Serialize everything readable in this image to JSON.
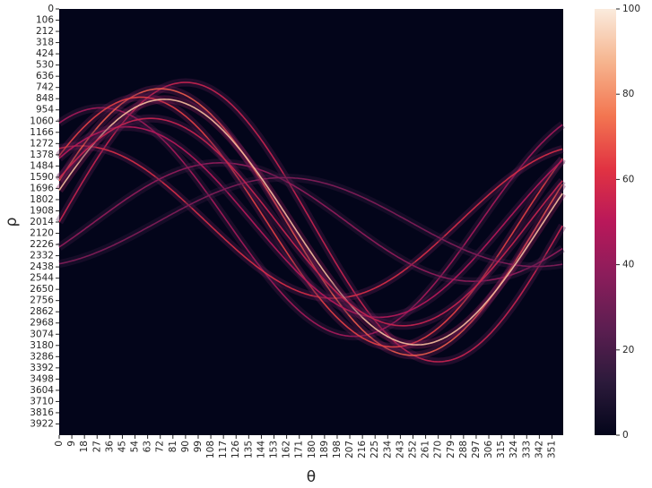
{
  "chart_data": {
    "type": "heatmap",
    "title": "",
    "xlabel": "θ",
    "ylabel": "ρ",
    "x_tick_labels": [
      "0",
      "9",
      "18",
      "27",
      "36",
      "45",
      "54",
      "63",
      "72",
      "81",
      "90",
      "99",
      "108",
      "117",
      "126",
      "135",
      "144",
      "153",
      "162",
      "171",
      "180",
      "189",
      "198",
      "207",
      "216",
      "225",
      "234",
      "243",
      "252",
      "261",
      "270",
      "279",
      "288",
      "297",
      "306",
      "315",
      "324",
      "333",
      "342",
      "351"
    ],
    "y_tick_labels": [
      "0",
      "106",
      "212",
      "318",
      "424",
      "530",
      "636",
      "742",
      "848",
      "954",
      "1060",
      "1166",
      "1272",
      "1378",
      "1484",
      "1590",
      "1696",
      "1802",
      "1908",
      "2014",
      "2120",
      "2226",
      "2332",
      "2438",
      "2544",
      "2650",
      "2756",
      "2862",
      "2968",
      "3074",
      "3180",
      "3286",
      "3392",
      "3498",
      "3604",
      "3710",
      "3816",
      "3922"
    ],
    "xlim": [
      0,
      359
    ],
    "ylim": [
      0,
      4028
    ],
    "colorbar": {
      "min": 0,
      "max": 100,
      "ticks": [
        "0",
        "20",
        "40",
        "60",
        "80",
        "100"
      ],
      "colormap": "rocket",
      "stops": [
        "#03051a",
        "#2c1a3b",
        "#5c1e51",
        "#8b1d5b",
        "#b9185a",
        "#e13342",
        "#f37651",
        "#f6b48e",
        "#faebdd"
      ]
    },
    "series": [
      {
        "center_rho": 2014,
        "amplitude": 1320,
        "phase_deg": 90,
        "intensity": 55
      },
      {
        "center_rho": 2014,
        "amplitude": 1080,
        "phase_deg": 30,
        "intensity": 45
      },
      {
        "center_rho": 2014,
        "amplitude": 720,
        "phase_deg": 15,
        "intensity": 60
      },
      {
        "center_rho": 2014,
        "amplitude": 560,
        "phase_deg": 115,
        "intensity": 40
      },
      {
        "center_rho": 2014,
        "amplitude": 1260,
        "phase_deg": 72,
        "intensity": 70
      },
      {
        "center_rho": 2014,
        "amplitude": 1180,
        "phase_deg": 58,
        "intensity": 65
      },
      {
        "center_rho": 2014,
        "amplitude": 900,
        "phase_deg": 48,
        "intensity": 50
      },
      {
        "center_rho": 2014,
        "amplitude": 420,
        "phase_deg": 160,
        "intensity": 35
      },
      {
        "center_rho": 2014,
        "amplitude": 1160,
        "phase_deg": 75,
        "intensity": 90
      },
      {
        "center_rho": 2014,
        "amplitude": 980,
        "phase_deg": 65,
        "intensity": 55
      }
    ]
  }
}
